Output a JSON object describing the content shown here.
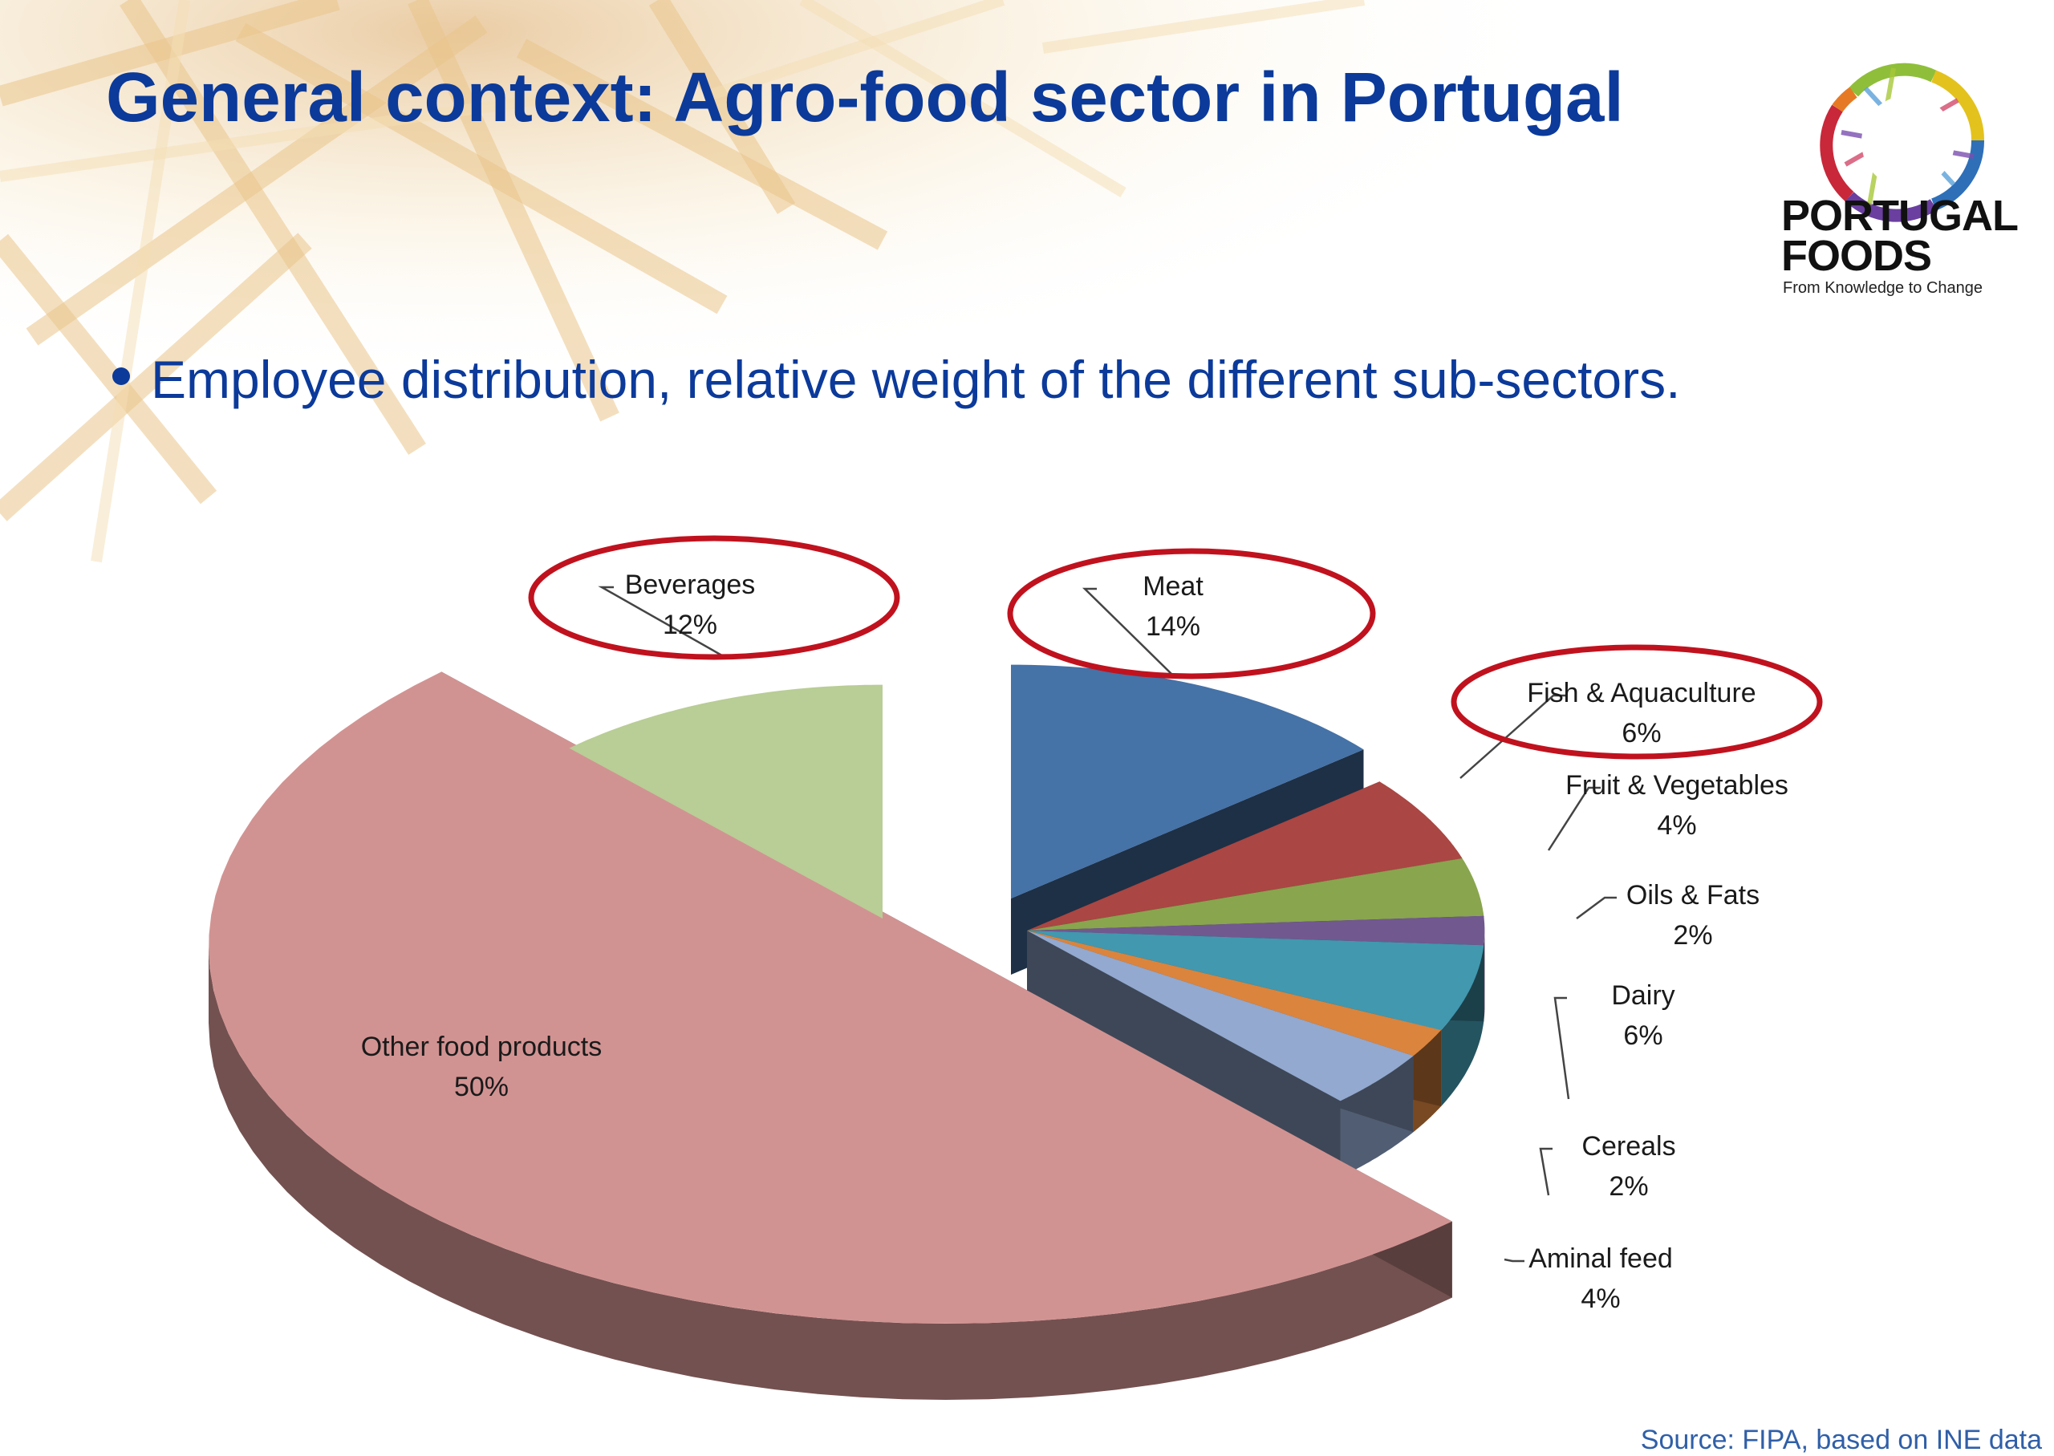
{
  "slide": {
    "title": "General context: Agro-food sector in Portugal",
    "bullet": "Employee distribution, relative weight of the different sub-sectors.",
    "source": "Source: FIPA, based on INE data"
  },
  "logo": {
    "line1": "PORTUGAL",
    "line2": "FOODS",
    "tagline": "From Knowledge to Change"
  },
  "chart_data": {
    "type": "pie",
    "style": "3d-exploded",
    "title": "",
    "categories": [
      "Meat",
      "Fish & Aquaculture",
      "Fruit & Vegetables",
      "Oils & Fats",
      "Dairy",
      "Cereals",
      "Aminal feed",
      "Other food products",
      "Beverages"
    ],
    "values": [
      14,
      6,
      4,
      2,
      6,
      2,
      4,
      50,
      12
    ],
    "labels": [
      "14%",
      "6%",
      "4%",
      "2%",
      "6%",
      "2%",
      "4%",
      "50%",
      "12%"
    ],
    "colors": [
      "#4572a7",
      "#aa4643",
      "#89a54e",
      "#71588f",
      "#4198af",
      "#db843d",
      "#93a9cf",
      "#d19392",
      "#b9cd96"
    ],
    "highlighted": [
      "Beverages",
      "Meat",
      "Fish & Aquaculture"
    ],
    "highlight_color": "#c0121e"
  }
}
